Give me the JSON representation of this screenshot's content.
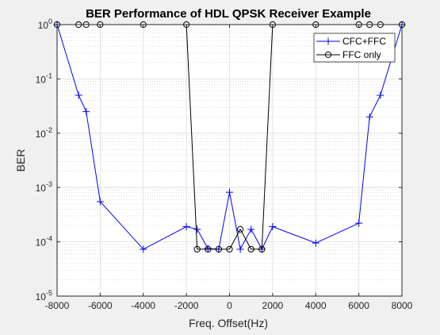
{
  "chart_data": {
    "type": "line",
    "title": "BER Performance of HDL QPSK Receiver Example",
    "xlabel": "Freq. Offset(Hz)",
    "ylabel": "BER",
    "xlim": [
      -8000,
      8000
    ],
    "ylim_log10": [
      -5,
      0
    ],
    "y_scale": "log",
    "grid": true,
    "legend_position": "top-right",
    "x_ticks": [
      -8000,
      -6000,
      -4000,
      -2000,
      0,
      2000,
      4000,
      6000,
      8000
    ],
    "x_tick_labels": [
      "-8000",
      "-6000",
      "-4000",
      "-2000",
      "0",
      "2000",
      "4000",
      "6000",
      "8000"
    ],
    "y_ticks_log10": [
      -5,
      -4,
      -3,
      -2,
      -1,
      0
    ],
    "y_tick_labels": [
      {
        "base": "10",
        "exp": "-5"
      },
      {
        "base": "10",
        "exp": "-4"
      },
      {
        "base": "10",
        "exp": "-3"
      },
      {
        "base": "10",
        "exp": "-2"
      },
      {
        "base": "10",
        "exp": "-1"
      },
      {
        "base": "10",
        "exp": "0"
      }
    ],
    "series": [
      {
        "name": "CFC+FFC",
        "color": "#0000ff",
        "marker": "plus",
        "x": [
          -8000,
          -7000,
          -6650,
          -6000,
          -4000,
          -2000,
          -1500,
          -1000,
          -500,
          0,
          500,
          1000,
          1500,
          2000,
          4000,
          6000,
          6500,
          7000,
          8000
        ],
        "y": [
          1.0,
          0.05,
          0.025,
          0.00055,
          7.3e-05,
          0.00019,
          0.00017,
          7.5e-05,
          7.3e-05,
          0.00082,
          7.3e-05,
          0.00017,
          7.3e-05,
          0.00019,
          9.5e-05,
          0.00022,
          0.02,
          0.05,
          1.0
        ]
      },
      {
        "name": "FFC only",
        "color": "#000000",
        "marker": "circle",
        "x": [
          -8000,
          -7000,
          -6650,
          -6000,
          -4000,
          -2000,
          -1500,
          -1000,
          -500,
          0,
          500,
          1000,
          1500,
          2000,
          4000,
          6000,
          6500,
          7000,
          8000
        ],
        "y": [
          1.0,
          1.0,
          1.0,
          1.0,
          1.0,
          1.0,
          7.3e-05,
          7.3e-05,
          7.3e-05,
          7.3e-05,
          0.00017,
          7.3e-05,
          7.3e-05,
          1.0,
          1.0,
          1.0,
          1.0,
          1.0,
          1.0
        ]
      }
    ]
  }
}
